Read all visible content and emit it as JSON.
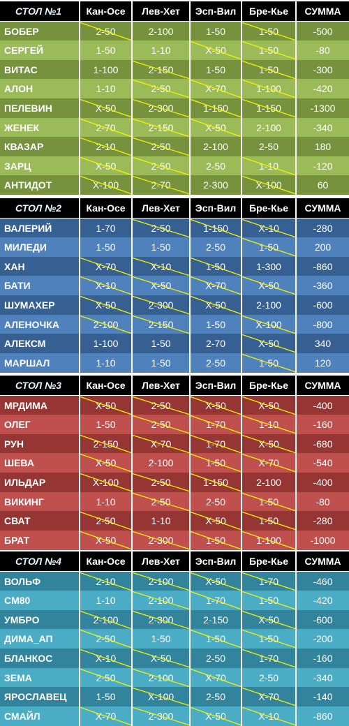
{
  "columns": [
    "Кан-Осе",
    "Лев-Хет",
    "Эсп-Вил",
    "Бре-Кье",
    "СУММА"
  ],
  "tables": [
    {
      "title": "СТОЛ №1",
      "colors": {
        "dark": "#76923c",
        "light": "#9bbb59"
      },
      "rows": [
        {
          "name": "БОБЕР",
          "cells": [
            "2-50",
            "2-100",
            "1-50",
            "1-50",
            "-500"
          ],
          "struck": [
            1,
            0,
            0,
            1
          ]
        },
        {
          "name": "СЕРГЕЙ",
          "cells": [
            "1-50",
            "1-10",
            "X-50",
            "1-50",
            "-80"
          ],
          "struck": [
            0,
            0,
            1,
            1
          ]
        },
        {
          "name": "ВИТАС",
          "cells": [
            "1-100",
            "2-150",
            "1-50",
            "1-50",
            "-300"
          ],
          "struck": [
            0,
            1,
            0,
            1
          ]
        },
        {
          "name": "АЛОН",
          "cells": [
            "1-10",
            "2-50",
            "X-70",
            "1-100",
            "-420"
          ],
          "struck": [
            0,
            1,
            1,
            1
          ]
        },
        {
          "name": "ПЕЛЕВИН",
          "cells": [
            "X-50",
            "2-300",
            "1-150",
            "1-150",
            "-1300"
          ],
          "struck": [
            1,
            1,
            1,
            1
          ]
        },
        {
          "name": "ЖЕНЕК",
          "cells": [
            "2-70",
            "2-150",
            "X-50",
            "2-100",
            "-340"
          ],
          "struck": [
            1,
            1,
            1,
            0
          ]
        },
        {
          "name": "КВАЗАР",
          "cells": [
            "2-10",
            "2-50",
            "2-100",
            "2-50",
            "180"
          ],
          "struck": [
            1,
            1,
            0,
            0
          ]
        },
        {
          "name": "ЗАРЦ",
          "cells": [
            "X-50",
            "2-50",
            "2-50",
            "1-10",
            "-120"
          ],
          "struck": [
            1,
            1,
            0,
            1
          ]
        },
        {
          "name": "АНТИДОТ",
          "cells": [
            "X-100",
            "2-70",
            "2-300",
            "X-100",
            "60"
          ],
          "struck": [
            1,
            1,
            0,
            1
          ]
        }
      ]
    },
    {
      "title": "СТОЛ №2",
      "colors": {
        "dark": "#366092",
        "light": "#4f81bd"
      },
      "rows": [
        {
          "name": "ВАЛЕРИЙ",
          "cells": [
            "1-70",
            "2-50",
            "1-150",
            "X-10",
            "-280"
          ],
          "struck": [
            0,
            1,
            1,
            1
          ]
        },
        {
          "name": "МИЛЕДИ",
          "cells": [
            "1-50",
            "1-50",
            "2-50",
            "1-50",
            "200"
          ],
          "struck": [
            0,
            0,
            0,
            1
          ]
        },
        {
          "name": "ХАН",
          "cells": [
            "X-70",
            "X-10",
            "1-50",
            "1-300",
            "-860"
          ],
          "struck": [
            1,
            1,
            1,
            0
          ]
        },
        {
          "name": "БАТИ",
          "cells": [
            "X-10",
            "X-50",
            "X-70",
            "X-50",
            "-360"
          ],
          "struck": [
            1,
            1,
            1,
            1
          ]
        },
        {
          "name": "ШУМАХЕР",
          "cells": [
            "X-50",
            "2-300",
            "X-50",
            "2-100",
            "-600"
          ],
          "struck": [
            1,
            1,
            1,
            0
          ]
        },
        {
          "name": "АЛЕНОЧКА",
          "cells": [
            "2-100",
            "2-150",
            "1-50",
            "X-100",
            "-800"
          ],
          "struck": [
            1,
            1,
            0,
            1
          ]
        },
        {
          "name": "АЛЕКСМ",
          "cells": [
            "1-100",
            "1-50",
            "2-70",
            "X-50",
            "340"
          ],
          "struck": [
            0,
            0,
            0,
            1
          ]
        },
        {
          "name": "МАРШАЛ",
          "cells": [
            "1-10",
            "1-50",
            "2-50",
            "1-50",
            "120"
          ],
          "struck": [
            0,
            0,
            0,
            1
          ]
        }
      ]
    },
    {
      "title": "СТОЛ №3",
      "colors": {
        "dark": "#963634",
        "light": "#c0504d"
      },
      "rows": [
        {
          "name": "МРДИМА",
          "cells": [
            "X-50",
            "2-50",
            "X-50",
            "X-50",
            "-400"
          ],
          "struck": [
            1,
            1,
            1,
            1
          ]
        },
        {
          "name": "ОЛЕГ",
          "cells": [
            "1-50",
            "2-50",
            "1-70",
            "1-10",
            "-160"
          ],
          "struck": [
            0,
            1,
            1,
            1
          ]
        },
        {
          "name": "РУН",
          "cells": [
            "2-150",
            "X-70",
            "1-70",
            "X-50",
            "-680"
          ],
          "struck": [
            1,
            1,
            1,
            1
          ]
        },
        {
          "name": "ШЕВА",
          "cells": [
            "X-50",
            "2-100",
            "1-50",
            "X-70",
            "-540"
          ],
          "struck": [
            1,
            0,
            1,
            1
          ]
        },
        {
          "name": "ИЛЬДАР",
          "cells": [
            "X-100",
            "2-50",
            "1-150",
            "2-100",
            "-400"
          ],
          "struck": [
            1,
            1,
            1,
            0
          ]
        },
        {
          "name": "ВИКИНГ",
          "cells": [
            "1-10",
            "2-50",
            "2-50",
            "1-50",
            "-80"
          ],
          "struck": [
            0,
            1,
            0,
            1
          ]
        },
        {
          "name": "СВАТ",
          "cells": [
            "2-50",
            "1-10",
            "X-50",
            "1-50",
            "-280"
          ],
          "struck": [
            1,
            0,
            1,
            1
          ]
        },
        {
          "name": "БРАТ",
          "cells": [
            "X-50",
            "2-300",
            "1-50",
            "1-100",
            "-1000"
          ],
          "struck": [
            1,
            1,
            1,
            1
          ]
        }
      ]
    },
    {
      "title": "СТОЛ №4",
      "colors": {
        "dark": "#31849b",
        "light": "#4bacc6"
      },
      "rows": [
        {
          "name": "ВОЛЬФ",
          "cells": [
            "2-10",
            "2-100",
            "X-50",
            "1-70",
            "-460"
          ],
          "struck": [
            1,
            1,
            1,
            1
          ]
        },
        {
          "name": "CM80",
          "cells": [
            "1-10",
            "2-100",
            "1-70",
            "1-50",
            "-420"
          ],
          "struck": [
            0,
            1,
            1,
            1
          ]
        },
        {
          "name": "УМБРО",
          "cells": [
            "2-100",
            "2-300",
            "2-150",
            "X-50",
            "-600"
          ],
          "struck": [
            1,
            1,
            0,
            1
          ]
        },
        {
          "name": "ДИМА_АП",
          "cells": [
            "2-50",
            "1-50",
            "1-50",
            "1-50",
            "-200"
          ],
          "struck": [
            1,
            0,
            1,
            1
          ]
        },
        {
          "name": "БЛАНКОС",
          "cells": [
            "X-10",
            "X-50",
            "2-50",
            "1-70",
            "-160"
          ],
          "struck": [
            1,
            1,
            0,
            1
          ]
        },
        {
          "name": "ЗЕМА",
          "cells": [
            "2-50",
            "2-100",
            "X-70",
            "2-50",
            "-340"
          ],
          "struck": [
            1,
            1,
            1,
            0
          ]
        },
        {
          "name": "ЯРОСЛАВЕЦ",
          "cells": [
            "1-50",
            "X-100",
            "2-50",
            "X-70",
            "-140"
          ],
          "struck": [
            0,
            1,
            0,
            1
          ]
        },
        {
          "name": "СМАЙЛ",
          "cells": [
            "X-70",
            "2-300",
            "X-50",
            "X-10",
            "-860"
          ],
          "struck": [
            1,
            1,
            1,
            1
          ]
        }
      ]
    }
  ]
}
